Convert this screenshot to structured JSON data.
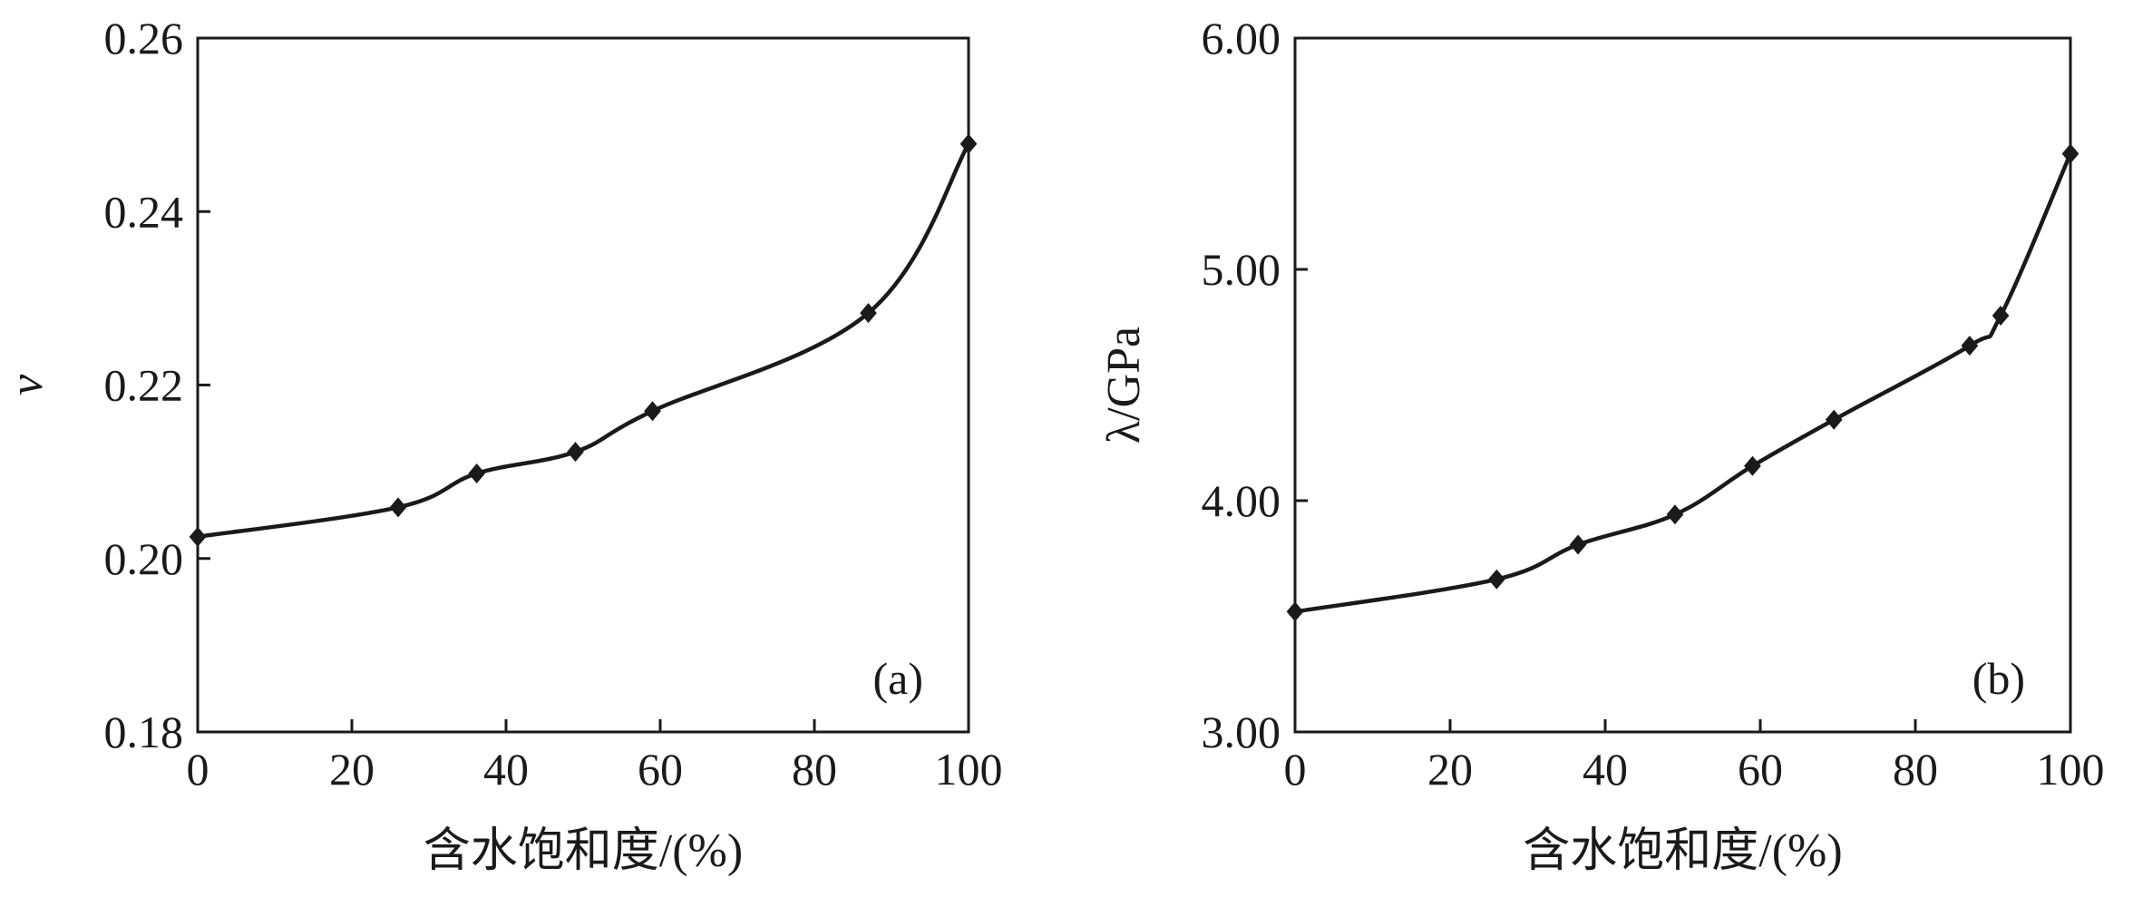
{
  "chart_data": [
    {
      "type": "line",
      "panel_label": "(a)",
      "xlabel": "含水饱和度/(%)",
      "ylabel": "ν",
      "xlim": [
        0,
        100
      ],
      "ylim": [
        0.18,
        0.26
      ],
      "xticks": [
        "0",
        "20",
        "40",
        "60",
        "80",
        "100"
      ],
      "yticks": [
        "0.18",
        "0.20",
        "0.22",
        "0.24",
        "0.26"
      ],
      "grid": false,
      "series": [
        {
          "x": [
            0,
            26,
            36.2,
            49,
            59,
            87,
            100
          ],
          "y": [
            0.2025,
            0.2059,
            0.2098,
            0.2123,
            0.217,
            0.2283,
            0.2478
          ]
        }
      ]
    },
    {
      "type": "line",
      "panel_label": "(b)",
      "xlabel": "含水饱和度/(%)",
      "ylabel": "λ/GPa",
      "xlim": [
        0,
        100
      ],
      "ylim": [
        3.0,
        6.0
      ],
      "xticks": [
        "0",
        "20",
        "40",
        "60",
        "80",
        "100"
      ],
      "yticks": [
        "3.00",
        "4.00",
        "5.00",
        "6.00"
      ],
      "grid": false,
      "series": [
        {
          "x": [
            0,
            26,
            36.5,
            49,
            59,
            69.5,
            87,
            91,
            100
          ],
          "y": [
            3.52,
            3.66,
            3.81,
            3.94,
            4.15,
            4.35,
            4.67,
            4.8,
            5.5
          ]
        }
      ]
    }
  ]
}
